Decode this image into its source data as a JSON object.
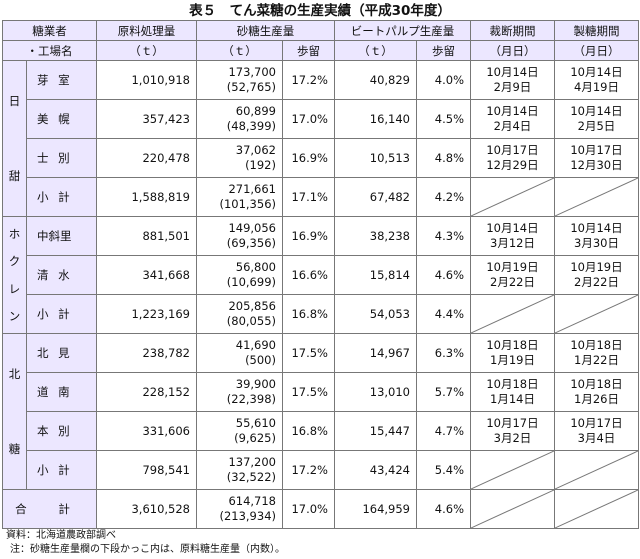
{
  "title": "表５　てん菜糖の生産実績（平成30年度）",
  "headers": {
    "company": "糖業者",
    "factory": "・工場名",
    "raw": "原料処理量",
    "raw_unit": "（ｔ）",
    "sugar": "砂糖生産量",
    "sugar_unit": "（ｔ）",
    "yield": "歩留",
    "pulp": "ビートパルプ生産量",
    "pulp_unit": "（ｔ）",
    "pulp_yield": "歩留",
    "slice": "裁断期間",
    "slice_unit": "（月日）",
    "refine": "製糖期間",
    "refine_unit": "（月日）"
  },
  "groups": {
    "g1": [
      "日",
      "甜"
    ],
    "g2": [
      "ホ",
      "ク",
      "レ",
      "ン"
    ],
    "g3": [
      "北",
      "糖"
    ]
  },
  "rows": [
    {
      "name": "芽 室",
      "raw": "1,010,918",
      "sugar": "173,700",
      "sugar_sub": "(52,765)",
      "yield": "17.2%",
      "pulp": "40,829",
      "pulp_yield": "4.0%",
      "slice1": "10月14日",
      "slice2": "2月9日",
      "ref1": "10月14日",
      "ref2": "4月19日"
    },
    {
      "name": "美 幌",
      "raw": "357,423",
      "sugar": "60,899",
      "sugar_sub": "(48,399)",
      "yield": "17.0%",
      "pulp": "16,140",
      "pulp_yield": "4.5%",
      "slice1": "10月14日",
      "slice2": "2月4日",
      "ref1": "10月14日",
      "ref2": "2月5日"
    },
    {
      "name": "士 別",
      "raw": "220,478",
      "sugar": "37,062",
      "sugar_sub": "(192)",
      "yield": "16.9%",
      "pulp": "10,513",
      "pulp_yield": "4.8%",
      "slice1": "10月17日",
      "slice2": "12月29日",
      "ref1": "10月17日",
      "ref2": "12月30日"
    },
    {
      "name": "小 計",
      "raw": "1,588,819",
      "sugar": "271,661",
      "sugar_sub": "(101,356)",
      "yield": "17.1%",
      "pulp": "67,482",
      "pulp_yield": "4.2%"
    },
    {
      "name": "中斜里",
      "raw": "881,501",
      "sugar": "149,056",
      "sugar_sub": "(69,356)",
      "yield": "16.9%",
      "pulp": "38,238",
      "pulp_yield": "4.3%",
      "slice1": "10月14日",
      "slice2": "3月12日",
      "ref1": "10月14日",
      "ref2": "3月30日"
    },
    {
      "name": "清 水",
      "raw": "341,668",
      "sugar": "56,800",
      "sugar_sub": "(10,699)",
      "yield": "16.6%",
      "pulp": "15,814",
      "pulp_yield": "4.6%",
      "slice1": "10月19日",
      "slice2": "2月22日",
      "ref1": "10月19日",
      "ref2": "2月22日"
    },
    {
      "name": "小 計",
      "raw": "1,223,169",
      "sugar": "205,856",
      "sugar_sub": "(80,055)",
      "yield": "16.8%",
      "pulp": "54,053",
      "pulp_yield": "4.4%"
    },
    {
      "name": "北 見",
      "raw": "238,782",
      "sugar": "41,690",
      "sugar_sub": "(500)",
      "yield": "17.5%",
      "pulp": "14,967",
      "pulp_yield": "6.3%",
      "slice1": "10月18日",
      "slice2": "1月19日",
      "ref1": "10月18日",
      "ref2": "1月22日"
    },
    {
      "name": "道 南",
      "raw": "228,152",
      "sugar": "39,900",
      "sugar_sub": "(22,398)",
      "yield": "17.5%",
      "pulp": "13,010",
      "pulp_yield": "5.7%",
      "slice1": "10月18日",
      "slice2": "1月14日",
      "ref1": "10月18日",
      "ref2": "1月26日"
    },
    {
      "name": "本 別",
      "raw": "331,606",
      "sugar": "55,610",
      "sugar_sub": "(9,625)",
      "yield": "16.8%",
      "pulp": "15,447",
      "pulp_yield": "4.7%",
      "slice1": "10月17日",
      "slice2": "3月2日",
      "ref1": "10月17日",
      "ref2": "3月4日"
    },
    {
      "name": "小 計",
      "raw": "798,541",
      "sugar": "137,200",
      "sugar_sub": "(32,522)",
      "yield": "17.2%",
      "pulp": "43,424",
      "pulp_yield": "5.4%"
    }
  ],
  "total": {
    "name": "合 計",
    "raw": "3,610,528",
    "sugar": "614,718",
    "sugar_sub": "(213,934)",
    "yield": "17.0%",
    "pulp": "164,959",
    "pulp_yield": "4.6%"
  },
  "footnotes": {
    "source": "資料：北海道農政部調べ",
    "note": "注：砂糖生産量欄の下段かっこ内は、原料糖生産量（内数）。"
  }
}
